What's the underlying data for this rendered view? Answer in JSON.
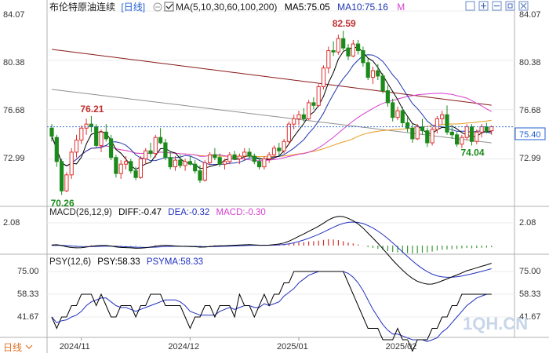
{
  "header": {
    "symbol": "布伦特原油连续",
    "period": "[日线]",
    "ma_label": "MA(5,10,30,60,100,200)",
    "ma5_label": "MA5:75.05",
    "ma10_label": "MA10:75.16",
    "m_button": "M"
  },
  "watermark": "1QH.CN",
  "bottom_tab": "日线",
  "price_current": "75.40",
  "colors": {
    "up": "#e03030",
    "down": "#1a8a1a",
    "ma5": "#000000",
    "ma10": "#1f35b0",
    "ma30": "#d63fd0",
    "ma60": "#e89a1c",
    "ma100": "#8a1a1a",
    "ma200": "#909090",
    "macd_dif": "#000000",
    "macd_dea": "#2030c0",
    "macd_hist": "#d63fd0",
    "psy": "#000000",
    "psyma": "#2030c0"
  },
  "icons": [
    "square-icon",
    "plus-icon",
    "minus-icon",
    "expand-icon",
    "settings-icon"
  ],
  "macd": {
    "label": "MACD(26,12,9)",
    "dif_label": "DIFF:-0.47",
    "dea_label": "DEA:-0.32",
    "macd_label": "MACD:-0.30",
    "tick": "2.08"
  },
  "psy": {
    "label": "PSY(12,6)",
    "psy_label": "PSY:58.33",
    "psyma_label": "PSYMA:58.33",
    "ticks": [
      "75.00",
      "58.33",
      "41.67"
    ]
  },
  "chart_data": {
    "type": "candlestick",
    "x_labels": [
      "2024/11",
      "2024/12",
      "2025/01",
      "2025/02"
    ],
    "x_label_index": [
      6,
      28,
      50,
      72
    ],
    "price_ticks": [
      "84.07",
      "80.38",
      "76.68",
      "72.99"
    ],
    "ylim": [
      69.5,
      84.07
    ],
    "ref_line": 75.4,
    "annotations": [
      {
        "text": "82.59",
        "index": 59,
        "value": 82.59,
        "color": "#c03030",
        "pos": "above"
      },
      {
        "text": "76.21",
        "index": 8,
        "value": 76.21,
        "color": "#c03030",
        "pos": "above"
      },
      {
        "text": "70.26",
        "index": 2,
        "value": 70.26,
        "color": "#1a8a1a",
        "pos": "below"
      },
      {
        "text": "74.04",
        "index": 85,
        "value": 74.04,
        "color": "#1a8a1a",
        "pos": "below"
      }
    ],
    "candles": [
      [
        75.3,
        75.6,
        74.3,
        74.7
      ],
      [
        74.6,
        74.8,
        72.4,
        72.8
      ],
      [
        72.8,
        73.0,
        70.3,
        70.6
      ],
      [
        70.6,
        72.0,
        70.5,
        71.8
      ],
      [
        71.8,
        73.8,
        71.5,
        73.5
      ],
      [
        73.5,
        74.8,
        73.1,
        74.4
      ],
      [
        74.4,
        75.5,
        74.1,
        75.3
      ],
      [
        75.3,
        76.0,
        74.8,
        75.6
      ],
      [
        75.6,
        76.2,
        75.0,
        75.4
      ],
      [
        75.4,
        75.6,
        73.8,
        74.0
      ],
      [
        74.0,
        75.2,
        73.5,
        75.0
      ],
      [
        75.0,
        75.6,
        74.3,
        74.5
      ],
      [
        74.5,
        74.8,
        72.9,
        73.1
      ],
      [
        73.1,
        73.3,
        71.6,
        71.9
      ],
      [
        71.9,
        72.9,
        71.5,
        72.6
      ],
      [
        72.6,
        73.2,
        72.2,
        72.8
      ],
      [
        72.8,
        73.0,
        71.9,
        72.1
      ],
      [
        72.1,
        72.4,
        71.4,
        71.6
      ],
      [
        71.6,
        73.2,
        71.5,
        73.0
      ],
      [
        73.0,
        73.8,
        72.6,
        73.6
      ],
      [
        73.6,
        74.2,
        73.1,
        73.4
      ],
      [
        73.4,
        74.8,
        73.1,
        74.6
      ],
      [
        74.6,
        75.3,
        74.1,
        74.2
      ],
      [
        74.2,
        74.5,
        72.9,
        73.1
      ],
      [
        73.1,
        73.5,
        72.2,
        72.4
      ],
      [
        72.4,
        73.2,
        72.1,
        72.9
      ],
      [
        72.9,
        73.3,
        72.3,
        72.5
      ],
      [
        72.5,
        73.0,
        72.1,
        72.8
      ],
      [
        72.8,
        73.2,
        72.5,
        72.6
      ],
      [
        72.6,
        72.9,
        71.9,
        72.1
      ],
      [
        72.1,
        72.5,
        71.2,
        71.4
      ],
      [
        71.4,
        72.9,
        71.3,
        72.7
      ],
      [
        72.7,
        73.5,
        72.5,
        73.3
      ],
      [
        73.3,
        73.8,
        72.9,
        73.1
      ],
      [
        73.1,
        73.4,
        72.4,
        72.6
      ],
      [
        72.6,
        73.0,
        72.2,
        72.8
      ],
      [
        72.8,
        73.5,
        72.6,
        73.3
      ],
      [
        73.3,
        73.6,
        72.9,
        73.0
      ],
      [
        73.0,
        73.4,
        72.6,
        73.2
      ],
      [
        73.2,
        73.8,
        72.9,
        73.5
      ],
      [
        73.5,
        73.8,
        73.0,
        73.2
      ],
      [
        73.2,
        73.4,
        72.6,
        72.8
      ],
      [
        72.8,
        73.1,
        72.2,
        72.4
      ],
      [
        72.4,
        73.2,
        72.2,
        73.0
      ],
      [
        73.0,
        73.5,
        72.7,
        73.3
      ],
      [
        73.3,
        74.0,
        73.1,
        73.8
      ],
      [
        73.8,
        74.2,
        73.2,
        73.6
      ],
      [
        73.6,
        74.5,
        73.4,
        74.3
      ],
      [
        74.3,
        75.8,
        74.1,
        75.6
      ],
      [
        75.6,
        76.3,
        75.2,
        76.0
      ],
      [
        76.0,
        76.6,
        75.5,
        76.3
      ],
      [
        76.3,
        76.8,
        75.8,
        76.0
      ],
      [
        76.0,
        77.4,
        75.9,
        77.2
      ],
      [
        77.2,
        77.6,
        76.7,
        77.0
      ],
      [
        77.0,
        78.6,
        76.9,
        78.4
      ],
      [
        78.4,
        80.0,
        78.2,
        79.8
      ],
      [
        79.8,
        81.4,
        79.4,
        81.1
      ],
      [
        81.1,
        81.8,
        80.7,
        81.0
      ],
      [
        81.0,
        82.3,
        80.8,
        82.0
      ],
      [
        82.0,
        82.59,
        81.1,
        81.3
      ],
      [
        81.3,
        81.6,
        80.4,
        80.7
      ],
      [
        80.7,
        81.9,
        80.6,
        81.6
      ],
      [
        81.6,
        81.9,
        80.8,
        81.1
      ],
      [
        81.1,
        81.4,
        79.9,
        80.2
      ],
      [
        80.2,
        80.5,
        78.9,
        79.1
      ],
      [
        79.1,
        79.9,
        78.6,
        79.6
      ],
      [
        79.6,
        80.1,
        78.9,
        79.2
      ],
      [
        79.2,
        79.4,
        77.9,
        78.1
      ],
      [
        78.1,
        78.5,
        76.9,
        77.2
      ],
      [
        77.2,
        77.5,
        75.8,
        76.1
      ],
      [
        76.1,
        76.9,
        75.9,
        76.6
      ],
      [
        76.6,
        76.9,
        75.4,
        75.7
      ],
      [
        75.7,
        76.1,
        75.0,
        75.3
      ],
      [
        75.3,
        75.6,
        74.2,
        74.5
      ],
      [
        74.5,
        75.6,
        74.4,
        75.4
      ],
      [
        75.4,
        76.0,
        74.8,
        75.1
      ],
      [
        75.1,
        75.3,
        73.9,
        74.2
      ],
      [
        74.2,
        75.4,
        74.0,
        75.2
      ],
      [
        75.2,
        76.2,
        74.9,
        76.0
      ],
      [
        76.0,
        76.6,
        75.6,
        76.3
      ],
      [
        76.3,
        77.0,
        74.8,
        75.0
      ],
      [
        75.0,
        75.5,
        74.5,
        74.8
      ],
      [
        74.8,
        75.0,
        73.9,
        74.1
      ],
      [
        74.1,
        74.8,
        73.8,
        74.6
      ],
      [
        74.6,
        75.6,
        74.4,
        75.4
      ],
      [
        75.4,
        75.6,
        74.0,
        74.3
      ],
      [
        74.3,
        75.2,
        74.1,
        75.0
      ],
      [
        75.0,
        75.6,
        74.6,
        75.4
      ],
      [
        75.4,
        75.7,
        74.9,
        75.1
      ],
      [
        75.1,
        75.5,
        74.8,
        75.4
      ]
    ],
    "macd_hist": [
      0.05,
      0.03,
      -0.05,
      -0.1,
      -0.08,
      -0.05,
      -0.02,
      0.02,
      0.04,
      0.03,
      0.02,
      0.0,
      -0.04,
      -0.08,
      -0.06,
      -0.04,
      -0.05,
      -0.06,
      -0.03,
      0.0,
      0.02,
      0.04,
      0.05,
      0.02,
      -0.02,
      -0.03,
      -0.03,
      -0.02,
      -0.02,
      -0.03,
      -0.05,
      -0.02,
      0.02,
      0.03,
      0.01,
      0.0,
      0.02,
      0.02,
      0.02,
      0.03,
      0.02,
      0.0,
      -0.02,
      0.0,
      0.02,
      0.05,
      0.06,
      0.1,
      0.18,
      0.25,
      0.3,
      0.32,
      0.38,
      0.4,
      0.45,
      0.52,
      0.58,
      0.55,
      0.5,
      0.4,
      0.28,
      0.2,
      0.1,
      -0.02,
      -0.15,
      -0.22,
      -0.3,
      -0.4,
      -0.5,
      -0.58,
      -0.62,
      -0.68,
      -0.7,
      -0.72,
      -0.7,
      -0.65,
      -0.62,
      -0.55,
      -0.45,
      -0.38,
      -0.35,
      -0.32,
      -0.3,
      -0.25,
      -0.22,
      -0.25,
      -0.22,
      -0.2,
      -0.18,
      -0.15
    ],
    "psy": [
      41.67,
      33.33,
      41.67,
      41.67,
      50.0,
      50.0,
      58.33,
      58.33,
      58.33,
      50.0,
      58.33,
      50.0,
      41.67,
      41.67,
      50.0,
      50.0,
      50.0,
      41.67,
      50.0,
      50.0,
      58.33,
      58.33,
      58.33,
      50.0,
      50.0,
      50.0,
      50.0,
      41.67,
      33.33,
      41.67,
      41.67,
      50.0,
      50.0,
      41.67,
      50.0,
      50.0,
      50.0,
      41.67,
      58.33,
      50.0,
      50.0,
      41.67,
      50.0,
      58.33,
      50.0,
      58.33,
      58.33,
      66.67,
      66.67,
      75.0,
      75.0,
      75.0,
      75.0,
      75.0,
      75.0,
      75.0,
      75.0,
      75.0,
      75.0,
      75.0,
      66.67,
      58.33,
      50.0,
      41.67,
      33.33,
      33.33,
      33.33,
      25.0,
      25.0,
      25.0,
      33.33,
      25.0,
      25.0,
      16.67,
      25.0,
      25.0,
      25.0,
      33.33,
      33.33,
      41.67,
      41.67,
      50.0,
      50.0,
      58.33,
      58.33,
      58.33,
      58.33,
      58.33,
      58.33,
      58.33
    ],
    "psy_range": [
      16,
      76
    ]
  }
}
